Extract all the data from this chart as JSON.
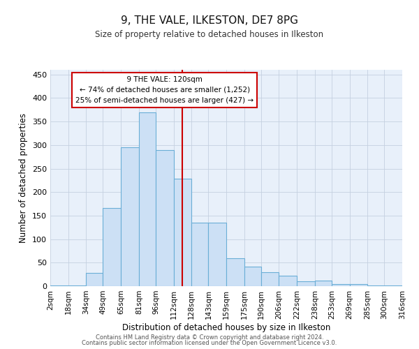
{
  "title": "9, THE VALE, ILKESTON, DE7 8PG",
  "subtitle": "Size of property relative to detached houses in Ilkeston",
  "xlabel": "Distribution of detached houses by size in Ilkeston",
  "ylabel": "Number of detached properties",
  "bar_color": "#cce0f5",
  "bar_edge_color": "#6aaed6",
  "background_color": "#e8f0fa",
  "grid_color": "#c5d0e0",
  "vline_x": 120,
  "vline_color": "#cc0000",
  "annotation_title": "9 THE VALE: 120sqm",
  "annotation_line1": "← 74% of detached houses are smaller (1,252)",
  "annotation_line2": "25% of semi-detached houses are larger (427) →",
  "annotation_box_color": "#ffffff",
  "annotation_box_edge": "#cc0000",
  "bins": [
    2,
    18,
    34,
    49,
    65,
    81,
    96,
    112,
    128,
    143,
    159,
    175,
    190,
    206,
    222,
    238,
    253,
    269,
    285,
    300,
    316
  ],
  "bar_heights": [
    2,
    2,
    28,
    166,
    295,
    370,
    290,
    228,
    135,
    135,
    60,
    42,
    30,
    22,
    10,
    12,
    5,
    5,
    2,
    2
  ],
  "tick_labels": [
    "2sqm",
    "18sqm",
    "34sqm",
    "49sqm",
    "65sqm",
    "81sqm",
    "96sqm",
    "112sqm",
    "128sqm",
    "143sqm",
    "159sqm",
    "175sqm",
    "190sqm",
    "206sqm",
    "222sqm",
    "238sqm",
    "253sqm",
    "269sqm",
    "285sqm",
    "300sqm",
    "316sqm"
  ],
  "yticks": [
    0,
    50,
    100,
    150,
    200,
    250,
    300,
    350,
    400,
    450
  ],
  "ylim": [
    0,
    460
  ],
  "footer_line1": "Contains HM Land Registry data © Crown copyright and database right 2024.",
  "footer_line2": "Contains public sector information licensed under the Open Government Licence v3.0."
}
